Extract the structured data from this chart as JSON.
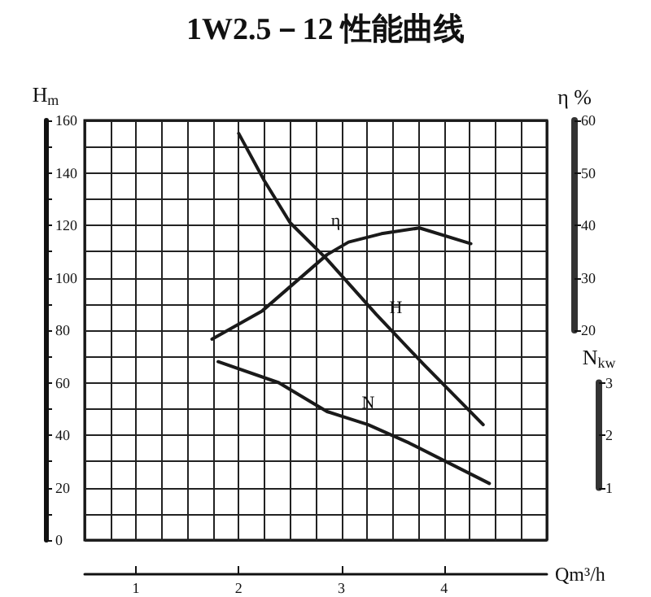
{
  "chart_data": {
    "type": "line",
    "title": "1W2.5－12 性能曲线",
    "xlabel": "Qm³/h",
    "ylabel": "H$_{m}$",
    "y2label": "η %",
    "y3label": "N$_{kw}$",
    "xlim": [
      0.5,
      5
    ],
    "xticks": [
      {
        "value": 0.5,
        "label": null
      },
      {
        "value": 0.75,
        "label": null
      },
      1,
      {
        "value": 1.25,
        "label": null
      },
      {
        "value": 1.5,
        "label": null
      },
      {
        "value": 1.75,
        "label": null
      },
      2,
      {
        "value": 2.25,
        "label": null
      },
      {
        "value": 2.5,
        "label": null
      },
      {
        "value": 2.75,
        "label": null
      },
      3,
      {
        "value": 3.25,
        "label": null
      },
      {
        "value": 3.5,
        "label": null
      },
      {
        "value": 3.75,
        "label": null
      },
      4,
      {
        "value": 4.25,
        "label": null
      },
      {
        "value": 4.5,
        "label": null
      },
      {
        "value": 4.75,
        "label": null
      },
      {
        "value": 5,
        "label": null
      }
    ],
    "ylim": [
      0,
      160
    ],
    "yticks": [
      0,
      {
        "value": 10,
        "label": null
      },
      20,
      {
        "value": 30,
        "label": null
      },
      40,
      {
        "value": 50,
        "label": null
      },
      60,
      {
        "value": 70,
        "label": null
      },
      80,
      {
        "value": 90,
        "label": null
      },
      100,
      {
        "value": 110,
        "label": null
      },
      120,
      {
        "value": 130,
        "label": null
      },
      140,
      {
        "value": 150,
        "label": null
      },
      160
    ],
    "y2lim": [
      -20,
      60
    ],
    "y2ticks": [
      20,
      30,
      40,
      50,
      60
    ],
    "y3lim": [
      0,
      8
    ],
    "y3ticks": [
      1,
      2,
      3
    ],
    "grid": true,
    "legend": false,
    "marker": "none",
    "line_style": "solid",
    "series": [
      {
        "name": "η",
        "color": "#1a1a1a",
        "axis": "y2",
        "x": [
          1.74,
          2.23,
          2.86,
          3.07,
          3.39,
          3.76,
          4.26
        ],
        "values": [
          18.3,
          23.7,
          34.4,
          36.8,
          38.4,
          39.5,
          36.5
        ]
      },
      {
        "name": "H",
        "color": "#1a1a1a",
        "x": [
          2.0,
          2.25,
          2.5,
          2.86,
          3.34,
          3.8,
          4.38
        ],
        "values": [
          155,
          137,
          121,
          107,
          86,
          67,
          44
        ]
      },
      {
        "name": "N",
        "color": "#1a1a1a",
        "axis": "y3",
        "x": [
          1.8,
          2.39,
          2.86,
          3.26,
          3.66,
          4.44
        ],
        "values": [
          3.4,
          3.0,
          2.45,
          2.2,
          1.85,
          1.08
        ]
      }
    ]
  }
}
